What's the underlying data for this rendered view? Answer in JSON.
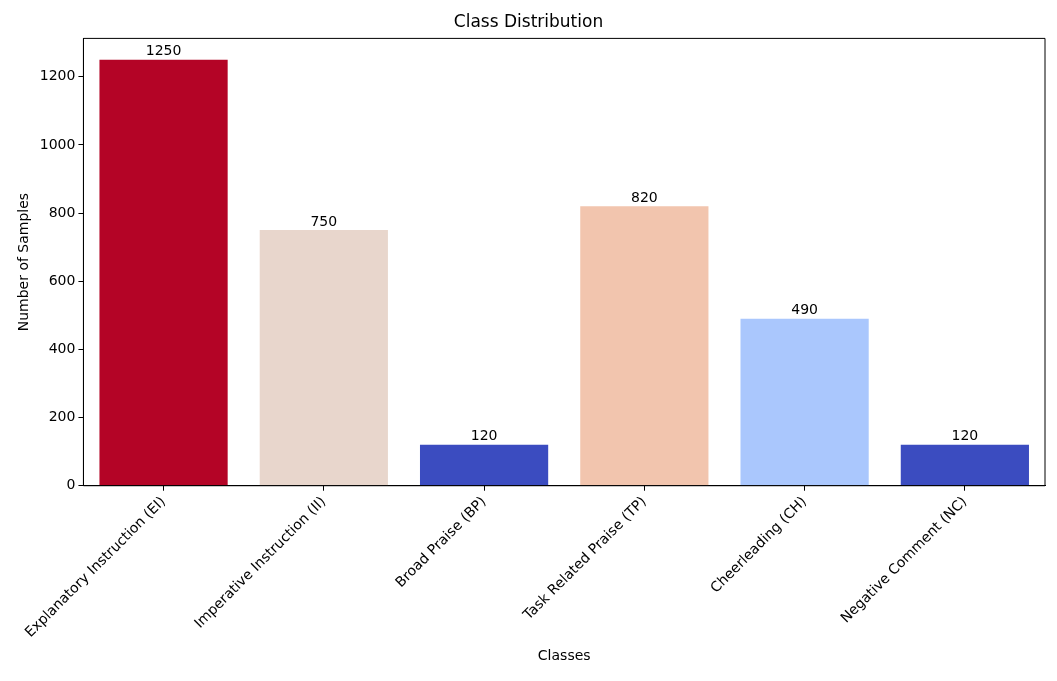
{
  "chart_data": {
    "type": "bar",
    "title": "Class Distribution",
    "xlabel": "Classes",
    "ylabel": "Number of Samples",
    "categories": [
      "Explanatory Instruction (EI)",
      "Imperative Instruction (II)",
      "Broad Praise (BP)",
      "Task Related Praise (TP)",
      "Cheerleading (CH)",
      "Negative Comment (NC)"
    ],
    "values": [
      1250,
      750,
      120,
      820,
      490,
      120
    ],
    "colors": [
      "#b40426",
      "#e8d6cc",
      "#3b4cc0",
      "#f2c5ae",
      "#aac7fd",
      "#3b4cc0"
    ],
    "ylim": [
      0,
      1312.5
    ],
    "yticks": [
      0,
      200,
      400,
      600,
      800,
      1000,
      1200
    ],
    "grid": false,
    "legend": false,
    "data_labels": true
  }
}
